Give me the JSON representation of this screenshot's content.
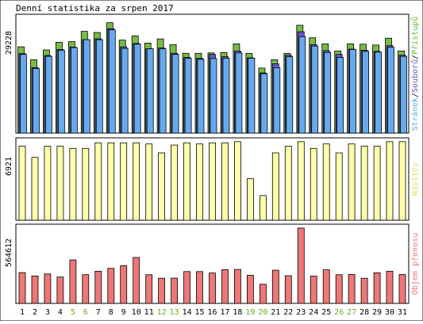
{
  "chart_data": {
    "type": "bar",
    "title": "Denní statistika za srpen 2017",
    "categories": [
      "1",
      "2",
      "3",
      "4",
      "5",
      "6",
      "7",
      "8",
      "9",
      "10",
      "11",
      "12",
      "13",
      "14",
      "15",
      "16",
      "17",
      "18",
      "19",
      "20",
      "21",
      "22",
      "23",
      "24",
      "25",
      "26",
      "27",
      "28",
      "29",
      "30",
      "31"
    ],
    "weekend_days": [
      "5",
      "6",
      "12",
      "13",
      "19",
      "20",
      "26",
      "27"
    ],
    "panels": [
      {
        "id": "hits",
        "max_label": "29228",
        "ylim": [
          0,
          31000
        ],
        "legend_parts": [
          "Stránek",
          "/",
          "Souborů",
          "/",
          "Přístupů"
        ],
        "legend_colors": [
          "#5aa9ee",
          "#000000",
          "#6655cc",
          "#000000",
          "#66bb33"
        ],
        "series": [
          {
            "name": "Přístupů",
            "color": "#77bb44",
            "values": [
              22800,
              19400,
              22000,
              24000,
              24200,
              26900,
              26600,
              29200,
              24600,
              25700,
              23800,
              24900,
              23400,
              21100,
              21100,
              21200,
              21300,
              23600,
              21100,
              17200,
              19400,
              21100,
              28500,
              25200,
              23600,
              21700,
              23600,
              23500,
              23300,
              25100,
              21700
            ]
          },
          {
            "name": "Souborů",
            "color": "#6655cc",
            "values": [
              21000,
              17300,
              20500,
              22100,
              22700,
              24700,
              24900,
              27600,
              22800,
              23700,
              22300,
              22500,
              21100,
              20000,
              19800,
              20800,
              20200,
              21700,
              19900,
              15900,
              18300,
              20600,
              26800,
              23400,
              21800,
              20800,
              22200,
              21900,
              21600,
              23100,
              20600
            ]
          },
          {
            "name": "Stránek",
            "color": "#66aaee",
            "values": [
              20800,
              17100,
              20300,
              21900,
              22600,
              24700,
              24700,
              27300,
              22400,
              23500,
              22300,
              22300,
              20800,
              19800,
              19500,
              19700,
              19800,
              21200,
              19800,
              15700,
              17300,
              20200,
              25500,
              23000,
              21300,
              20000,
              22100,
              21600,
              21400,
              22700,
              20300
            ]
          }
        ]
      },
      {
        "id": "visits",
        "max_label": "6921",
        "ylim": [
          0,
          7200
        ],
        "legend_parts": [
          "Návštěv"
        ],
        "legend_colors": [
          "#dddd66"
        ],
        "series": [
          {
            "name": "Návštěv",
            "color": "#ffffaa",
            "values": [
              6600,
              5600,
              6600,
              6600,
              6400,
              6400,
              6900,
              6900,
              6900,
              6900,
              6800,
              6000,
              6700,
              6900,
              6800,
              6900,
              6900,
              7000,
              3700,
              2200,
              6000,
              6600,
              7000,
              6400,
              6800,
              6000,
              6800,
              6600,
              6600,
              7000,
              7000
            ]
          }
        ]
      },
      {
        "id": "volume",
        "max_label": "564612",
        "ylim": [
          0,
          580000
        ],
        "legend_parts": [
          "Objem přenosu"
        ],
        "legend_colors": [
          "#ee7777"
        ],
        "series": [
          {
            "name": "Objem přenosu",
            "color": "#ee7777",
            "values": [
              230000,
              205000,
              220000,
              197000,
              325000,
              215000,
              240000,
              262000,
              282000,
              343000,
              214000,
              188000,
              189000,
              238000,
              238000,
              227000,
              252000,
              254000,
              210000,
              143000,
              248000,
              207000,
              563000,
              204000,
              251000,
              214000,
              217000,
              188000,
              229000,
              240000,
              216000
            ]
          }
        ]
      }
    ]
  }
}
